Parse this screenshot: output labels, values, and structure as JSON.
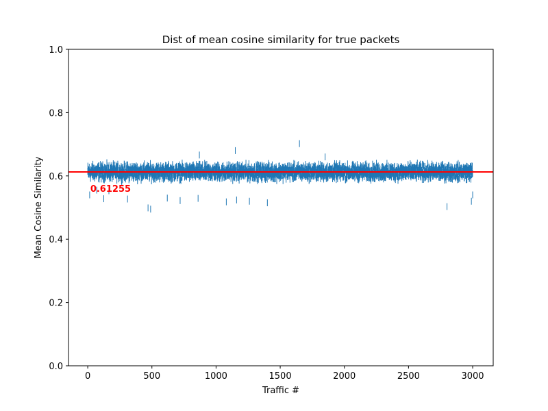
{
  "chart_data": {
    "type": "scatter",
    "marker": "vertical-line",
    "title": "Dist of mean cosine similarity for true packets",
    "xlabel": "Traffic #",
    "ylabel": "Mean Cosine Similarity",
    "xlim": [
      -150,
      3160
    ],
    "ylim": [
      0.0,
      1.0
    ],
    "xticks": [
      0,
      500,
      1000,
      1500,
      2000,
      2500,
      3000
    ],
    "yticks": [
      0.0,
      0.2,
      0.4,
      0.6,
      0.8,
      1.0
    ],
    "xtick_labels": [
      "0",
      "500",
      "1000",
      "1500",
      "2000",
      "2500",
      "3000"
    ],
    "ytick_labels": [
      "0.0",
      "0.2",
      "0.4",
      "0.6",
      "0.8",
      "1.0"
    ],
    "grid": false,
    "series": [
      {
        "color": "#1f77b4",
        "x_range": [
          0,
          3000
        ],
        "point_count": 3001,
        "typical_range": [
          0.58,
          0.645
        ],
        "center": 0.61255,
        "outliers": [
          {
            "x": 15,
            "y": 0.54
          },
          {
            "x": 70,
            "y": 0.555
          },
          {
            "x": 125,
            "y": 0.528
          },
          {
            "x": 165,
            "y": 0.553
          },
          {
            "x": 310,
            "y": 0.527
          },
          {
            "x": 470,
            "y": 0.499
          },
          {
            "x": 490,
            "y": 0.495
          },
          {
            "x": 620,
            "y": 0.53
          },
          {
            "x": 720,
            "y": 0.522
          },
          {
            "x": 860,
            "y": 0.529
          },
          {
            "x": 870,
            "y": 0.666
          },
          {
            "x": 1080,
            "y": 0.518
          },
          {
            "x": 1150,
            "y": 0.68
          },
          {
            "x": 1160,
            "y": 0.524
          },
          {
            "x": 1260,
            "y": 0.52
          },
          {
            "x": 1400,
            "y": 0.515
          },
          {
            "x": 1650,
            "y": 0.702
          },
          {
            "x": 1850,
            "y": 0.66
          },
          {
            "x": 2800,
            "y": 0.503
          },
          {
            "x": 2990,
            "y": 0.52
          },
          {
            "x": 3000,
            "y": 0.54
          }
        ]
      }
    ],
    "reference_line": {
      "orientation": "horizontal",
      "y": 0.61255,
      "color": "#ff0000",
      "label": "0.61255",
      "label_x": 20,
      "label_y": 0.5625
    }
  }
}
